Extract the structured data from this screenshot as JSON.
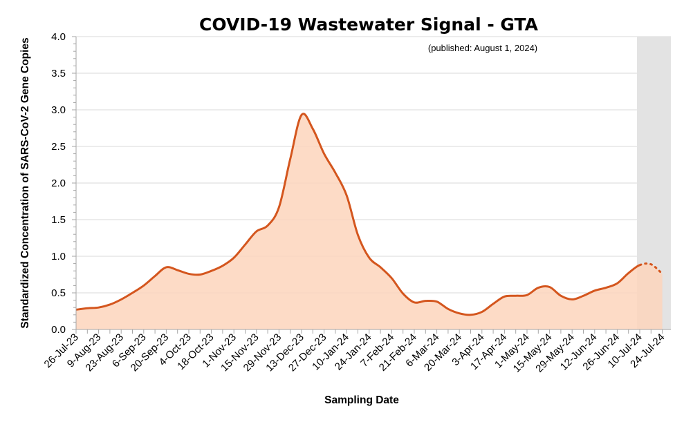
{
  "chart_data": {
    "type": "area",
    "title": "COVID-19 Wastewater Signal - GTA",
    "annotation": "(published: August 1, 2024)",
    "xlabel": "Sampling Date",
    "ylabel": "Standardized Concentration of SARS-CoV-2 Gene Copies",
    "ylim": [
      0,
      4.0
    ],
    "yticks": [
      "0.0",
      "0.5",
      "1.0",
      "1.5",
      "2.0",
      "2.5",
      "3.0",
      "3.5",
      "4.0"
    ],
    "grid": true,
    "dates": [
      "26-Jul-23",
      "2-Aug-23",
      "9-Aug-23",
      "16-Aug-23",
      "23-Aug-23",
      "30-Aug-23",
      "6-Sep-23",
      "13-Sep-23",
      "20-Sep-23",
      "27-Sep-23",
      "4-Oct-23",
      "11-Oct-23",
      "18-Oct-23",
      "25-Oct-23",
      "1-Nov-23",
      "8-Nov-23",
      "15-Nov-23",
      "22-Nov-23",
      "29-Nov-23",
      "6-Dec-23",
      "13-Dec-23",
      "20-Dec-23",
      "27-Dec-23",
      "3-Jan-24",
      "10-Jan-24",
      "17-Jan-24",
      "24-Jan-24",
      "31-Jan-24",
      "7-Feb-24",
      "14-Feb-24",
      "21-Feb-24",
      "28-Feb-24",
      "6-Mar-24",
      "13-Mar-24",
      "20-Mar-24",
      "27-Mar-24",
      "3-Apr-24",
      "10-Apr-24",
      "17-Apr-24",
      "24-Apr-24",
      "1-May-24",
      "8-May-24",
      "15-May-24",
      "22-May-24",
      "29-May-24",
      "5-Jun-24",
      "12-Jun-24",
      "19-Jun-24",
      "26-Jun-24",
      "3-Jul-24",
      "10-Jul-24",
      "17-Jul-24",
      "24-Jul-24"
    ],
    "values": [
      0.27,
      0.29,
      0.3,
      0.34,
      0.41,
      0.5,
      0.6,
      0.73,
      0.85,
      0.81,
      0.76,
      0.75,
      0.8,
      0.87,
      0.98,
      1.16,
      1.34,
      1.42,
      1.67,
      2.33,
      2.93,
      2.74,
      2.4,
      2.14,
      1.83,
      1.29,
      0.98,
      0.85,
      0.7,
      0.49,
      0.37,
      0.39,
      0.38,
      0.28,
      0.22,
      0.2,
      0.24,
      0.35,
      0.45,
      0.46,
      0.47,
      0.57,
      0.58,
      0.46,
      0.41,
      0.46,
      0.53,
      0.57,
      0.63,
      0.77,
      0.88,
      0.89,
      0.76
    ],
    "xtick_labels": [
      "26-Jul-23",
      "9-Aug-23",
      "23-Aug-23",
      "6-Sep-23",
      "20-Sep-23",
      "4-Oct-23",
      "18-Oct-23",
      "1-Nov-23",
      "15-Nov-23",
      "29-Nov-23",
      "13-Dec-23",
      "27-Dec-23",
      "10-Jan-24",
      "24-Jan-24",
      "7-Feb-24",
      "21-Feb-24",
      "6-Mar-24",
      "20-Mar-24",
      "3-Apr-24",
      "17-Apr-24",
      "1-May-24",
      "15-May-24",
      "29-May-24",
      "12-Jun-24",
      "26-Jun-24",
      "10-Jul-24",
      "24-Jul-24"
    ],
    "dotted_from": "10-Jul-24",
    "shaded_from": "10-Jul-24",
    "colors": {
      "line": "#D4561E",
      "fill": "#FDD5BC",
      "shade": "#E3E3E3",
      "grid": "#D9D9D9",
      "axis": "#A6A6A6"
    }
  }
}
